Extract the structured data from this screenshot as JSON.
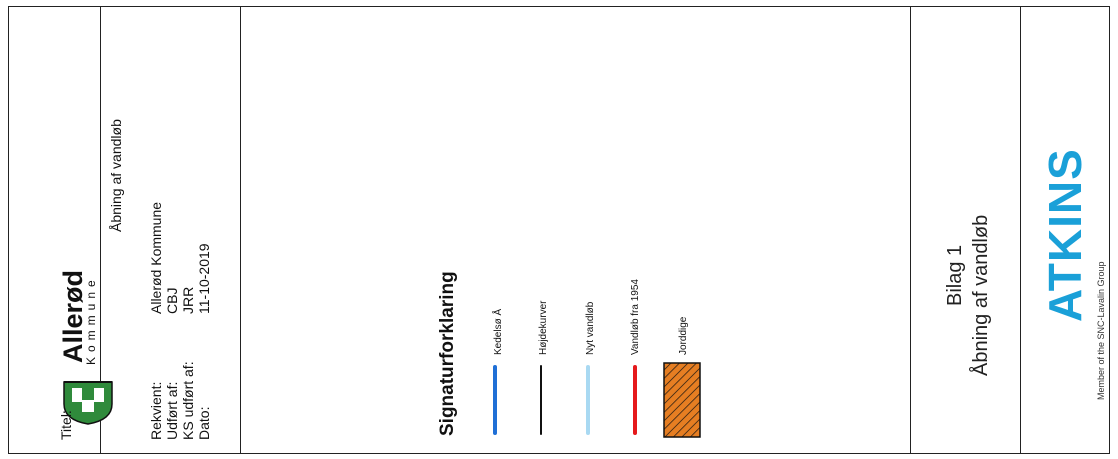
{
  "logo": {
    "name": "Allerød",
    "subtitle": "Kommune",
    "shield_color": "#2f8a3b"
  },
  "info": {
    "title_label": "Titel:",
    "title_value": "Åbning af vandløb",
    "rows": [
      {
        "label": "Rekvient:",
        "value": "Allerød Kommune"
      },
      {
        "label": "Udført af:",
        "value": "CBJ"
      },
      {
        "label": "KS udført af:",
        "value": "JRR"
      },
      {
        "label": "Dato:",
        "value": "11-10-2019"
      }
    ]
  },
  "legend": {
    "title": "Signaturforklaring",
    "items": [
      {
        "label": "Kedelsø Å",
        "color": "#1f6fd6",
        "type": "line"
      },
      {
        "label": "Højdekurver",
        "color": "#111111",
        "type": "line"
      },
      {
        "label": "Nyt vandløb",
        "color": "#a9d9f2",
        "type": "line"
      },
      {
        "label": "Vandløb fra 1954",
        "color": "#e5191c",
        "type": "line"
      },
      {
        "label": "Jorddige",
        "color": "#e67e22",
        "type": "hatch"
      }
    ]
  },
  "bilag": {
    "line1": "Bilag 1",
    "line2": "Åbning af vandløb"
  },
  "atkins": {
    "name": "ATKINS",
    "tagline": "Member of the SNC-Lavalin Group",
    "color": "#1aa0d8"
  }
}
